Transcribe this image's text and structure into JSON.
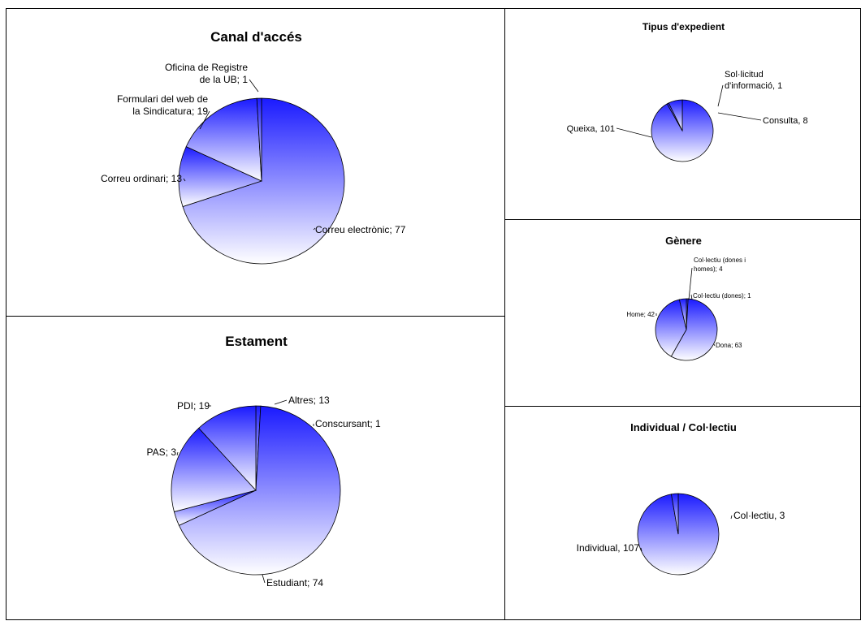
{
  "colors": {
    "slice_dark": "#1a1aff",
    "slice_light": "#ffffff",
    "outline": "#000000",
    "leader": "#000000"
  },
  "chart_data": [
    {
      "type": "pie",
      "title": "Canal d'accés",
      "slices": [
        {
          "label": "Correu electrònic; 77",
          "value": 77
        },
        {
          "label": "Correu ordinari; 13",
          "value": 13
        },
        {
          "label": [
            "Formulari del web de",
            "la Sindicatura; 19"
          ],
          "value": 19
        },
        {
          "label": [
            "Oficina de Registre",
            "de la UB; 1"
          ],
          "value": 1
        }
      ]
    },
    {
      "type": "pie",
      "title": "Estament",
      "slices": [
        {
          "label": "Conscursant; 1",
          "value": 1
        },
        {
          "label": "Estudiant; 74",
          "value": 74
        },
        {
          "label": "PAS; 3",
          "value": 3
        },
        {
          "label": "PDI; 19",
          "value": 19
        },
        {
          "label": "Altres; 13",
          "value": 13
        }
      ]
    },
    {
      "type": "pie",
      "title": "Tipus d'expedient",
      "slices": [
        {
          "label": "Queixa, 101",
          "value": 101
        },
        {
          "label": [
            "Sol·licitud",
            "d'informació, 1"
          ],
          "value": 1
        },
        {
          "label": "Consulta, 8",
          "value": 8
        }
      ]
    },
    {
      "type": "pie",
      "title": "Gènere",
      "slices": [
        {
          "label": "Col·lectiu (dones); 1",
          "value": 1
        },
        {
          "label": "Dona; 63",
          "value": 63
        },
        {
          "label": "Home; 42",
          "value": 42
        },
        {
          "label": [
            "Col·lectiu (dones i",
            "homes); 4"
          ],
          "value": 4
        }
      ]
    },
    {
      "type": "pie",
      "title": "Individual / Col·lectiu",
      "slices": [
        {
          "label": "Individual, 107",
          "value": 107
        },
        {
          "label": "Col·lectiu, 3",
          "value": 3
        }
      ]
    }
  ]
}
